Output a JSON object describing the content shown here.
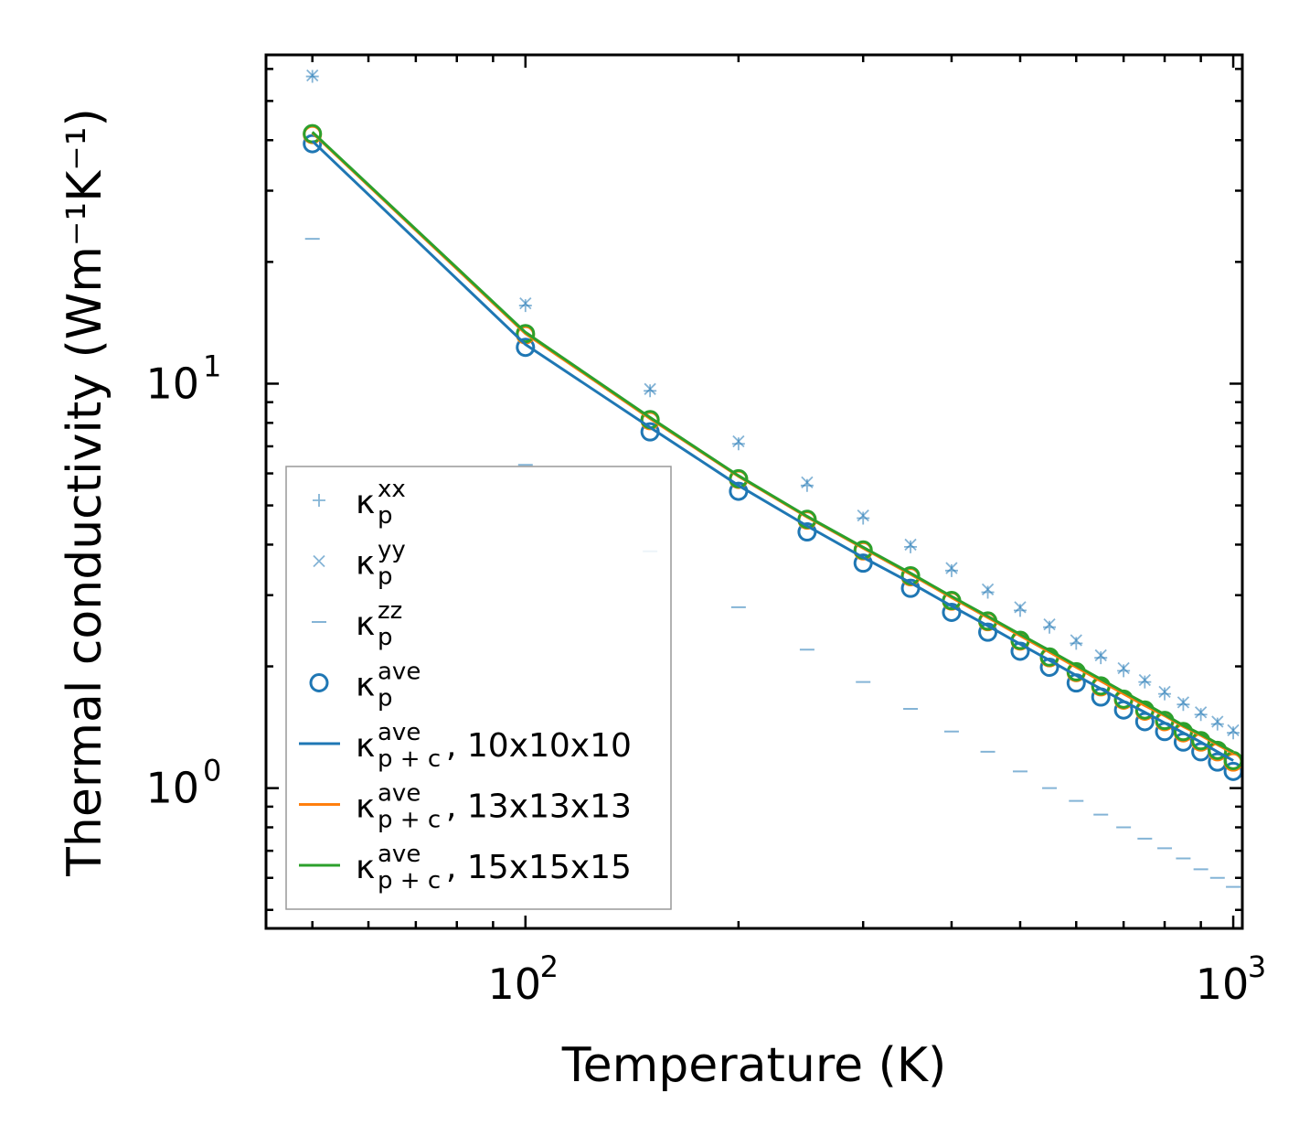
{
  "chart_data": {
    "type": "scatter",
    "title": "",
    "xlabel": "Temperature (K)",
    "ylabel": "Thermal conductivity (Wm⁻¹K⁻¹)",
    "xscale": "log",
    "yscale": "log",
    "xlim": [
      43,
      1030
    ],
    "ylim": [
      0.45,
      65
    ],
    "x_ticks": [
      {
        "base": "10",
        "exp": "2",
        "value": 100
      },
      {
        "base": "10",
        "exp": "3",
        "value": 1000
      }
    ],
    "y_ticks": [
      {
        "base": "10",
        "exp": "0",
        "value": 1
      },
      {
        "base": "10",
        "exp": "1",
        "value": 10
      }
    ],
    "legend_position": "lower-left",
    "x": [
      50,
      100,
      150,
      200,
      250,
      300,
      350,
      400,
      450,
      500,
      550,
      600,
      650,
      700,
      750,
      800,
      850,
      900,
      950,
      1000
    ],
    "series": [
      {
        "name": "kp_xx",
        "legend": {
          "base": "κ",
          "sub": "p",
          "sup": "xx",
          "suffix": ""
        },
        "marker": "plus",
        "color": "#1f77b4",
        "values": [
          57.5,
          15.6,
          9.6,
          7.1,
          5.6,
          4.65,
          3.95,
          3.45,
          3.05,
          2.75,
          2.5,
          2.28,
          2.1,
          1.95,
          1.83,
          1.71,
          1.61,
          1.52,
          1.44,
          1.37
        ]
      },
      {
        "name": "kp_yy",
        "legend": {
          "base": "κ",
          "sub": "p",
          "sup": "yy",
          "suffix": ""
        },
        "marker": "x",
        "color": "#1f77b4",
        "values": [
          57.8,
          15.8,
          9.7,
          7.2,
          5.7,
          4.72,
          4.0,
          3.5,
          3.1,
          2.8,
          2.54,
          2.32,
          2.13,
          1.98,
          1.85,
          1.73,
          1.63,
          1.54,
          1.46,
          1.39
        ]
      },
      {
        "name": "kp_zz",
        "legend": {
          "base": "κ",
          "sub": "p",
          "sup": "zz",
          "suffix": ""
        },
        "marker": "dash",
        "color": "#1f77b4",
        "values": [
          22.8,
          6.3,
          3.85,
          2.8,
          2.2,
          1.83,
          1.57,
          1.38,
          1.23,
          1.1,
          1.0,
          0.93,
          0.86,
          0.8,
          0.75,
          0.71,
          0.67,
          0.63,
          0.6,
          0.57
        ]
      },
      {
        "name": "kp_ave_10",
        "legend": {
          "base": "κ",
          "sub": "p",
          "sup": "ave",
          "suffix": ""
        },
        "marker": "circle",
        "color": "#1f77b4",
        "values": [
          39.2,
          12.3,
          7.6,
          5.42,
          4.3,
          3.6,
          3.12,
          2.72,
          2.43,
          2.18,
          1.99,
          1.82,
          1.68,
          1.56,
          1.46,
          1.38,
          1.3,
          1.23,
          1.16,
          1.1
        ]
      },
      {
        "name": "kp_ave_13",
        "legend": null,
        "marker": "circle",
        "color": "#ff7f0e",
        "values": [
          41.3,
          13.2,
          8.1,
          5.8,
          4.6,
          3.86,
          3.33,
          2.9,
          2.58,
          2.31,
          2.1,
          1.93,
          1.78,
          1.65,
          1.55,
          1.46,
          1.37,
          1.3,
          1.23,
          1.16
        ]
      },
      {
        "name": "kp_ave_15",
        "legend": null,
        "marker": "circle",
        "color": "#2ca02c",
        "values": [
          41.5,
          13.3,
          8.15,
          5.82,
          4.62,
          3.88,
          3.35,
          2.91,
          2.59,
          2.32,
          2.11,
          1.94,
          1.79,
          1.66,
          1.56,
          1.47,
          1.38,
          1.31,
          1.24,
          1.17
        ]
      },
      {
        "name": "kpc_ave_10",
        "legend": {
          "base": "κ",
          "sub": "p + c",
          "sup": "ave",
          "suffix": ", 10x10x10"
        },
        "marker": "line",
        "color": "#1f77b4",
        "values": [
          39.8,
          12.5,
          7.8,
          5.6,
          4.45,
          3.72,
          3.22,
          2.82,
          2.52,
          2.27,
          2.07,
          1.9,
          1.76,
          1.64,
          1.54,
          1.45,
          1.37,
          1.3,
          1.23,
          1.17
        ]
      },
      {
        "name": "kpc_ave_13",
        "legend": {
          "base": "κ",
          "sub": "p + c",
          "sup": "ave",
          "suffix": ", 13x13x13"
        },
        "marker": "line",
        "color": "#ff7f0e",
        "values": [
          41.7,
          13.3,
          8.2,
          5.9,
          4.68,
          3.92,
          3.38,
          2.96,
          2.64,
          2.38,
          2.17,
          1.99,
          1.84,
          1.71,
          1.6,
          1.51,
          1.42,
          1.35,
          1.28,
          1.22
        ]
      },
      {
        "name": "kpc_ave_15",
        "legend": {
          "base": "κ",
          "sub": "p + c",
          "sup": "ave",
          "suffix": ", 15x15x15"
        },
        "marker": "line",
        "color": "#2ca02c",
        "values": [
          41.9,
          13.4,
          8.25,
          5.92,
          4.7,
          3.94,
          3.4,
          2.98,
          2.66,
          2.4,
          2.19,
          2.01,
          1.86,
          1.73,
          1.62,
          1.52,
          1.43,
          1.36,
          1.29,
          1.23
        ]
      }
    ]
  }
}
